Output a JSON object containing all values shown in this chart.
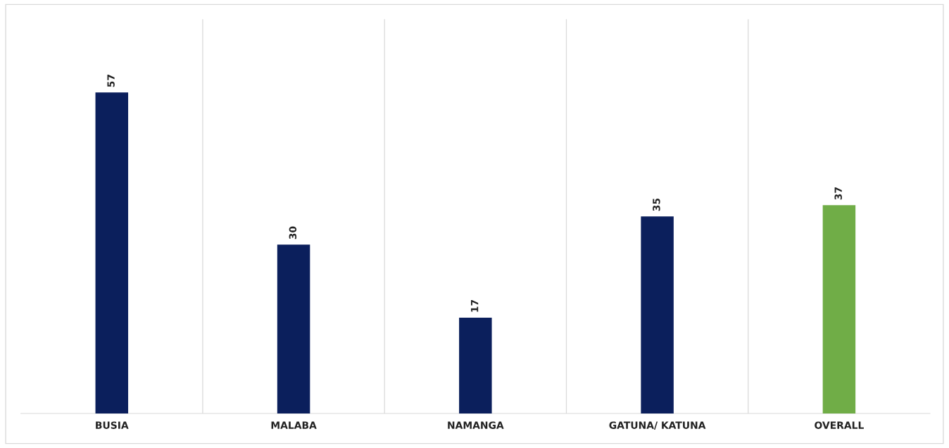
{
  "chart_data": {
    "type": "bar",
    "categories": [
      "BUSIA",
      "MALABA",
      "NAMANGA",
      "GATUNA/ KATUNA",
      "OVERALL"
    ],
    "values": [
      57,
      30,
      17,
      35,
      37
    ],
    "colors": [
      "#0b1f5c",
      "#0b1f5c",
      "#0b1f5c",
      "#0b1f5c",
      "#70ad47"
    ],
    "ylim": [
      0,
      70
    ],
    "data_labels": true,
    "grid": "x",
    "tick_labels": "x"
  }
}
